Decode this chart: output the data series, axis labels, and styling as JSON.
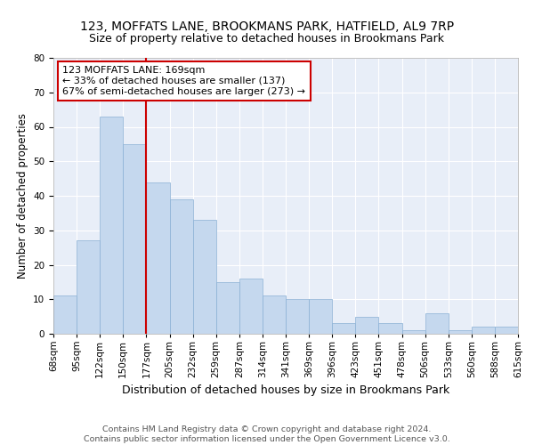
{
  "title": "123, MOFFATS LANE, BROOKMANS PARK, HATFIELD, AL9 7RP",
  "subtitle": "Size of property relative to detached houses in Brookmans Park",
  "xlabel": "Distribution of detached houses by size in Brookmans Park",
  "ylabel": "Number of detached properties",
  "footer_line1": "Contains HM Land Registry data © Crown copyright and database right 2024.",
  "footer_line2": "Contains public sector information licensed under the Open Government Licence v3.0.",
  "bar_labels": [
    "68sqm",
    "95sqm",
    "122sqm",
    "150sqm",
    "177sqm",
    "205sqm",
    "232sqm",
    "259sqm",
    "287sqm",
    "314sqm",
    "341sqm",
    "369sqm",
    "396sqm",
    "423sqm",
    "451sqm",
    "478sqm",
    "506sqm",
    "533sqm",
    "560sqm",
    "588sqm",
    "615sqm"
  ],
  "bar_values": [
    11,
    27,
    63,
    55,
    44,
    39,
    33,
    15,
    16,
    11,
    10,
    10,
    3,
    5,
    3,
    1,
    6,
    1,
    2,
    2
  ],
  "bar_color": "#c5d8ee",
  "bar_edge_color": "#8ab0d4",
  "vline_color": "#cc0000",
  "vline_x_index": 4,
  "annotation_text": "123 MOFFATS LANE: 169sqm\n← 33% of detached houses are smaller (137)\n67% of semi-detached houses are larger (273) →",
  "annotation_box_facecolor": "white",
  "annotation_box_edgecolor": "#cc0000",
  "ylim": [
    0,
    80
  ],
  "yticks": [
    0,
    10,
    20,
    30,
    40,
    50,
    60,
    70,
    80
  ],
  "background_color": "#e8eef8",
  "title_fontsize": 10,
  "subtitle_fontsize": 9,
  "xlabel_fontsize": 9,
  "ylabel_fontsize": 8.5,
  "tick_fontsize": 7.5,
  "annotation_fontsize": 8,
  "footer_fontsize": 6.8
}
